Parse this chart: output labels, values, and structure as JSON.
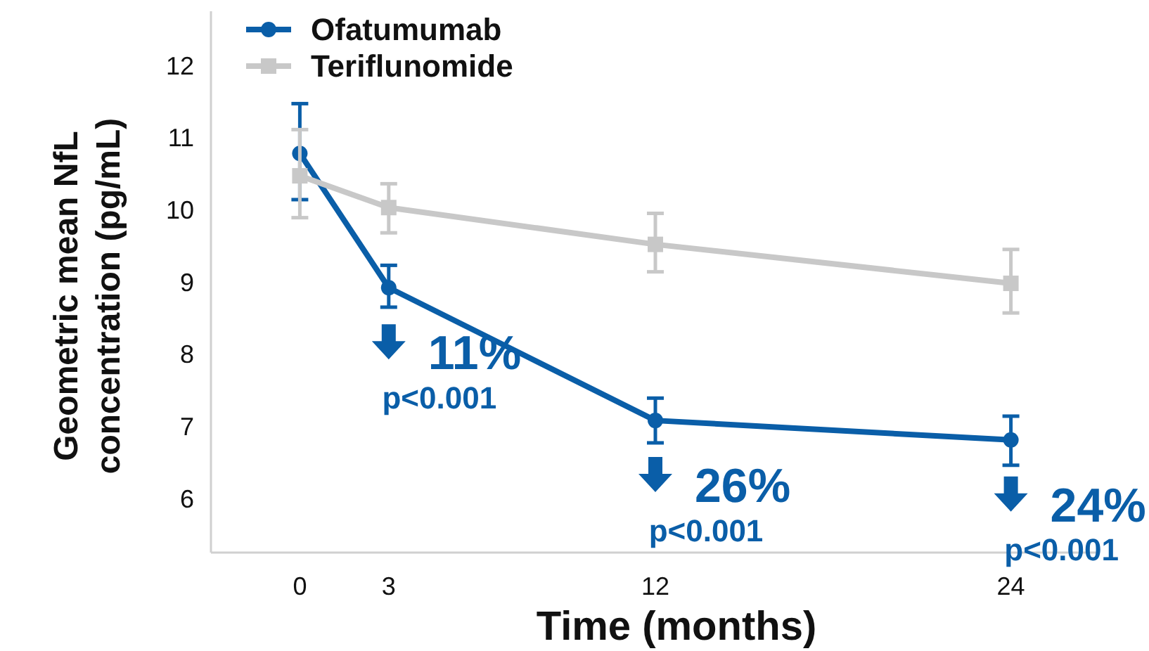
{
  "chart_data": {
    "type": "line",
    "xlabel": "Time (months)",
    "ylabel": "Geometric mean NfL\nconcentration (pg/mL)",
    "x": [
      0,
      3,
      12,
      24
    ],
    "xlim": [
      -3,
      27
    ],
    "xticks": [
      0,
      3,
      12,
      24
    ],
    "ylim": [
      5.25,
      12.75
    ],
    "yticks": [
      6,
      7,
      8,
      9,
      10,
      11,
      12
    ],
    "series": [
      {
        "name": "Ofatumumab",
        "color": "#0a5ea8",
        "marker": "circle",
        "values": [
          10.78,
          8.92,
          7.08,
          6.81
        ],
        "errors": [
          [
            10.14,
            11.47
          ],
          [
            8.65,
            9.23
          ],
          [
            6.77,
            7.39
          ],
          [
            6.46,
            7.14
          ]
        ]
      },
      {
        "name": "Teriflunomide",
        "color": "#c8c8c8",
        "marker": "square",
        "values": [
          10.47,
          10.03,
          9.52,
          8.98
        ],
        "errors": [
          [
            9.89,
            11.11
          ],
          [
            9.68,
            10.36
          ],
          [
            9.14,
            9.95
          ],
          [
            8.57,
            9.45
          ]
        ]
      }
    ],
    "annotations": [
      "11%",
      "p<0.001",
      "26%",
      "p<0.001",
      "24%",
      "p<0.001"
    ],
    "legend": "top left",
    "grid": false,
    "line_style": "solid"
  }
}
